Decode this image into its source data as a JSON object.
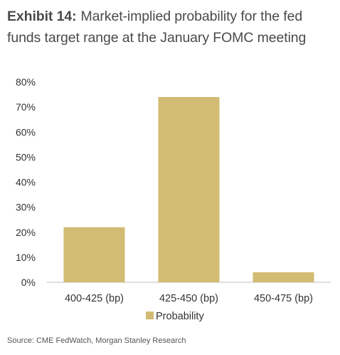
{
  "header": {
    "exhibit_label": "Exhibit 14:",
    "title": "Market-implied probability for the fed funds target range at the January FOMC meeting"
  },
  "chart_data": {
    "type": "bar",
    "categories": [
      "400-425 (bp)",
      "425-450 (bp)",
      "450-475 (bp)"
    ],
    "series": [
      {
        "name": "Probability",
        "values": [
          22,
          74,
          4
        ]
      }
    ],
    "ylim": [
      0,
      80
    ],
    "yticks": [
      0,
      10,
      20,
      30,
      40,
      50,
      60,
      70,
      80
    ],
    "ytick_labels": [
      "0%",
      "10%",
      "20%",
      "30%",
      "40%",
      "50%",
      "60%",
      "70%",
      "80%"
    ],
    "grid": false,
    "legend": "bottom-center",
    "bar_color": "#d2bb72"
  },
  "footer": {
    "source": "Source: CME FedWatch, Morgan Stanley Research"
  }
}
